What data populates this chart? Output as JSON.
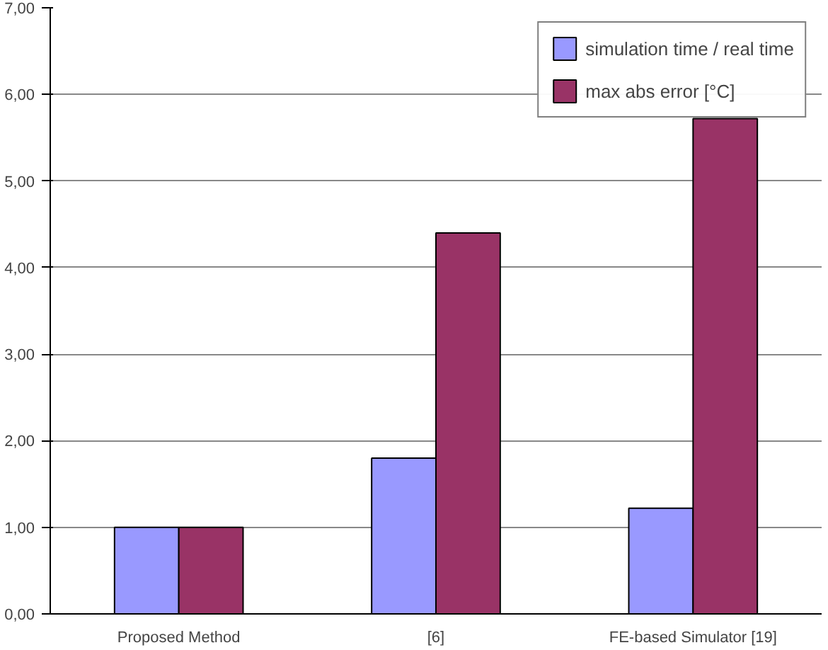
{
  "chart_data": {
    "type": "bar",
    "categories": [
      "Proposed Method",
      "[6]",
      "FE-based Simulator [19]"
    ],
    "series": [
      {
        "name": "simulation time / real time",
        "color": "#9999ff",
        "values": [
          1.0,
          1.8,
          1.22
        ]
      },
      {
        "name": "max abs error [°C]",
        "color": "#993366",
        "values": [
          1.0,
          4.4,
          5.72
        ]
      }
    ],
    "ylim": [
      0,
      7
    ],
    "yticks": [
      {
        "value": 0,
        "label": "0,00"
      },
      {
        "value": 1,
        "label": "1,00"
      },
      {
        "value": 2,
        "label": "2,00"
      },
      {
        "value": 3,
        "label": "3,00"
      },
      {
        "value": 4,
        "label": "4,00"
      },
      {
        "value": 5,
        "label": "5,00"
      },
      {
        "value": 6,
        "label": "6,00"
      },
      {
        "value": 7,
        "label": "7,00"
      }
    ],
    "grid": "y",
    "legend": "top right"
  }
}
